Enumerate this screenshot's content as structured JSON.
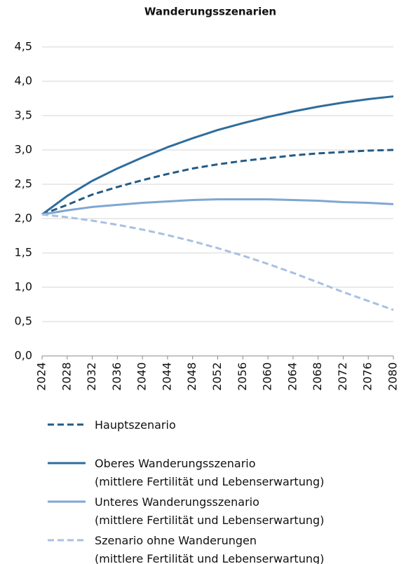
{
  "chart_data": {
    "type": "line",
    "title": "Wanderungsszenarien",
    "x": [
      2024,
      2028,
      2032,
      2036,
      2040,
      2044,
      2048,
      2052,
      2056,
      2060,
      2064,
      2068,
      2072,
      2076,
      2080
    ],
    "series": [
      {
        "name": "Hauptszenario",
        "color": "#245a84",
        "linestyle": "dashed",
        "values": [
          2.06,
          2.2,
          2.35,
          2.46,
          2.56,
          2.65,
          2.73,
          2.79,
          2.84,
          2.88,
          2.92,
          2.95,
          2.97,
          2.99,
          3.0
        ]
      },
      {
        "name": "Oberes Wanderungsszenario\n(mittlere Fertilität und Lebenserwartung)",
        "color": "#2e6d9c",
        "linestyle": "solid",
        "values": [
          2.06,
          2.33,
          2.55,
          2.73,
          2.89,
          3.04,
          3.17,
          3.29,
          3.39,
          3.48,
          3.56,
          3.63,
          3.69,
          3.74,
          3.78
        ]
      },
      {
        "name": "Unteres Wanderungsszenario\n(mittlere Fertilität und Lebenserwartung)",
        "color": "#7fa6d3",
        "linestyle": "solid",
        "values": [
          2.06,
          2.12,
          2.17,
          2.2,
          2.23,
          2.25,
          2.27,
          2.28,
          2.28,
          2.28,
          2.27,
          2.26,
          2.24,
          2.23,
          2.21
        ]
      },
      {
        "name": "Szenario ohne Wanderungen\n(mittlere Fertilität und Lebenserwartung)",
        "color": "#a8c0e1",
        "linestyle": "dashed",
        "values": [
          2.06,
          2.02,
          1.97,
          1.91,
          1.84,
          1.76,
          1.67,
          1.57,
          1.46,
          1.34,
          1.21,
          1.07,
          0.93,
          0.8,
          0.67
        ]
      }
    ],
    "xlim": [
      2024,
      2080
    ],
    "xticks": [
      2024,
      2028,
      2032,
      2036,
      2040,
      2044,
      2048,
      2052,
      2056,
      2060,
      2064,
      2068,
      2072,
      2076,
      2080
    ],
    "ylim": [
      0,
      4.5
    ],
    "yticks": [
      {
        "value": 0,
        "label": "0,0"
      },
      {
        "value": 0.5,
        "label": "0,5"
      },
      {
        "value": 1,
        "label": "1,0"
      },
      {
        "value": 1.5,
        "label": "1,5"
      },
      {
        "value": 2,
        "label": "2,0"
      },
      {
        "value": 2.5,
        "label": "2,5"
      },
      {
        "value": 3,
        "label": "3,0"
      },
      {
        "value": 3.5,
        "label": "3,5"
      },
      {
        "value": 4,
        "label": "4,0"
      },
      {
        "value": 4.5,
        "label": "4,5"
      }
    ],
    "grid": true
  }
}
